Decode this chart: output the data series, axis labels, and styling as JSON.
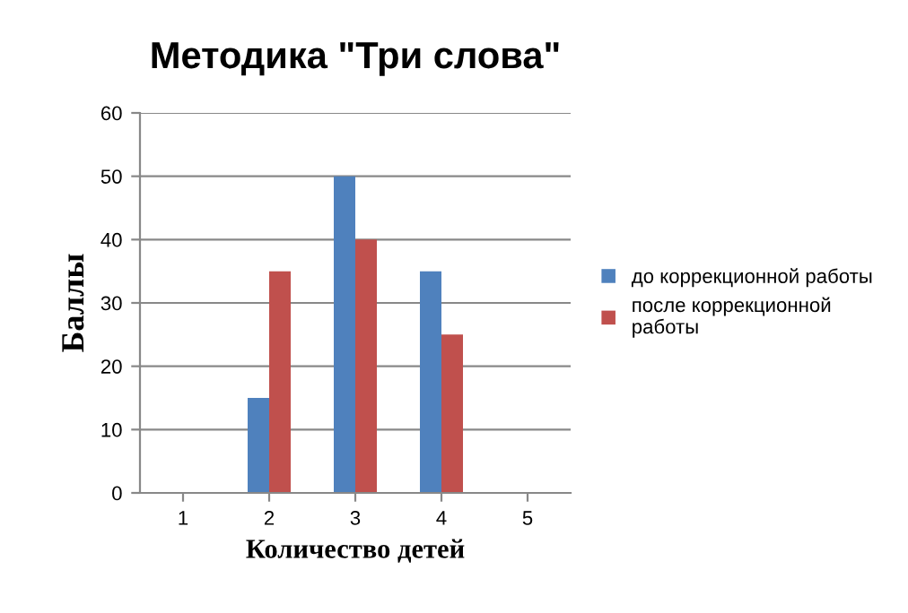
{
  "chart_data": {
    "type": "bar",
    "title": "Методика \"Три слова\"",
    "xlabel": "Количество детей",
    "ylabel": "Баллы",
    "categories": [
      "1",
      "2",
      "3",
      "4",
      "5"
    ],
    "series": [
      {
        "name": "до коррекционной работы",
        "color": "#4f81bd",
        "values": [
          0,
          15,
          50,
          35,
          0
        ]
      },
      {
        "name": "после коррекционной работы",
        "color": "#c0504d",
        "values": [
          0,
          35,
          40,
          25,
          0
        ]
      }
    ],
    "ylim": [
      0,
      60
    ],
    "yticks": [
      0,
      10,
      20,
      30,
      40,
      50,
      60
    ],
    "grid": "y",
    "legend": "right"
  }
}
